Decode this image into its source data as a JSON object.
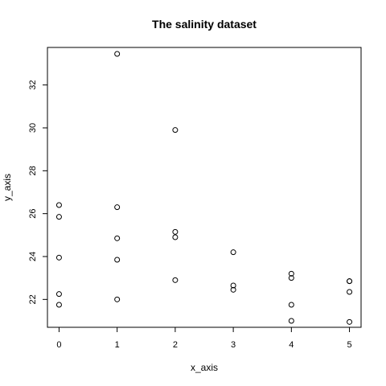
{
  "chart_data": {
    "type": "scatter",
    "title": "The salinity dataset",
    "xlabel": "x_axis",
    "ylabel": "y_axis",
    "xlim": [
      -0.2,
      5.2
    ],
    "ylim": [
      20.7,
      33.75
    ],
    "xticks": [
      0,
      1,
      2,
      3,
      4,
      5
    ],
    "yticks": [
      22,
      24,
      26,
      28,
      30,
      32
    ],
    "grid": false,
    "legend": "none",
    "marker": "open-circle",
    "x": [
      0,
      0,
      0,
      0,
      0,
      1,
      1,
      1,
      1,
      1,
      2,
      2,
      2,
      2,
      3,
      3,
      3,
      4,
      4,
      4,
      4,
      5,
      5,
      5,
      5
    ],
    "y": [
      26.4,
      25.85,
      23.95,
      22.25,
      21.75,
      33.45,
      26.3,
      24.85,
      23.85,
      22.0,
      29.9,
      25.15,
      24.9,
      22.9,
      24.2,
      22.65,
      22.45,
      23.2,
      23.0,
      21.75,
      21.0,
      22.85,
      22.85,
      22.35,
      20.95
    ]
  }
}
